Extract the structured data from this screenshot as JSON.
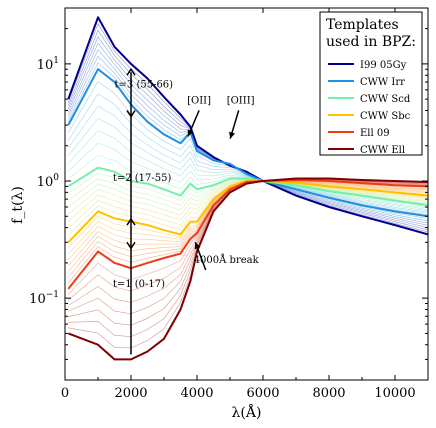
{
  "chart_data": {
    "type": "line",
    "xlabel": "λ(Å)",
    "ylabel": "f_t(λ)",
    "xlim": [
      0,
      11000
    ],
    "ylim": [
      0.02,
      30
    ],
    "yscale": "log",
    "x_ticks": [
      0,
      2000,
      4000,
      6000,
      8000,
      10000
    ],
    "y_ticks": [
      {
        "value": 0.1,
        "label": "10",
        "exp": "−1"
      },
      {
        "value": 1,
        "label": "10",
        "exp": "0"
      },
      {
        "value": 10,
        "label": "10",
        "exp": "1"
      }
    ],
    "legend": {
      "title_lines": [
        "Templates",
        "used in BPZ:"
      ],
      "placement": "top-right"
    },
    "x": [
      100,
      1000,
      1500,
      2000,
      2500,
      3000,
      3500,
      3800,
      4000,
      4500,
      5000,
      5500,
      6000,
      7000,
      8000,
      9000,
      10000,
      11000
    ],
    "series": [
      {
        "name": "I99 05Gy",
        "color": "#00008f",
        "values": [
          5.0,
          25.0,
          14.0,
          10.0,
          7.5,
          5.2,
          3.7,
          2.9,
          2.0,
          1.6,
          1.35,
          1.2,
          1.0,
          0.75,
          0.6,
          0.5,
          0.42,
          0.35
        ]
      },
      {
        "name": "CWW Irr",
        "color": "#1f8fe0",
        "values": [
          3.0,
          9.0,
          7.0,
          4.5,
          3.2,
          2.5,
          2.1,
          2.6,
          1.8,
          1.5,
          1.4,
          1.15,
          1.0,
          0.85,
          0.72,
          0.62,
          0.55,
          0.5
        ]
      },
      {
        "name": "CWW Scd",
        "color": "#74f0a8",
        "values": [
          0.9,
          1.3,
          1.2,
          1.0,
          0.95,
          0.85,
          0.75,
          0.95,
          0.85,
          0.92,
          1.05,
          1.05,
          1.0,
          0.92,
          0.82,
          0.75,
          0.68,
          0.62
        ]
      },
      {
        "name": "CWW Sbc",
        "color": "#ffc000",
        "values": [
          0.3,
          0.55,
          0.48,
          0.45,
          0.42,
          0.38,
          0.35,
          0.45,
          0.45,
          0.7,
          0.9,
          1.0,
          1.0,
          0.97,
          0.9,
          0.85,
          0.8,
          0.75
        ]
      },
      {
        "name": "Ell 09",
        "color": "#f03c14",
        "values": [
          0.12,
          0.25,
          0.2,
          0.18,
          0.2,
          0.22,
          0.24,
          0.32,
          0.36,
          0.62,
          0.85,
          0.98,
          1.0,
          1.02,
          1.0,
          0.96,
          0.92,
          0.9
        ]
      },
      {
        "name": "CWW Ell",
        "color": "#7f0000",
        "values": [
          0.05,
          0.04,
          0.03,
          0.03,
          0.035,
          0.045,
          0.08,
          0.14,
          0.25,
          0.55,
          0.8,
          0.95,
          1.0,
          1.05,
          1.05,
          1.02,
          1.0,
          0.98
        ]
      }
    ],
    "annotations": [
      {
        "text": "t=3 (55-66)",
        "x": 1500,
        "y": 6.3
      },
      {
        "text": "t=2 (17-55)",
        "x": 1450,
        "y": 1.0
      },
      {
        "text": "t=1 (0-17)",
        "x": 1450,
        "y": 0.125
      },
      {
        "text": "[OII]",
        "x": 3700,
        "y": 4.6,
        "arrow_to_x": 3727,
        "arrow_to_y": 2.4
      },
      {
        "text": "[OIII]",
        "x": 4900,
        "y": 4.6,
        "arrow_to_x": 5007,
        "arrow_to_y": 2.3
      },
      {
        "text": "4000Å break",
        "x": 3900,
        "y": 0.2,
        "arrow_to_x": 3950,
        "arrow_to_y": 0.3
      }
    ]
  }
}
